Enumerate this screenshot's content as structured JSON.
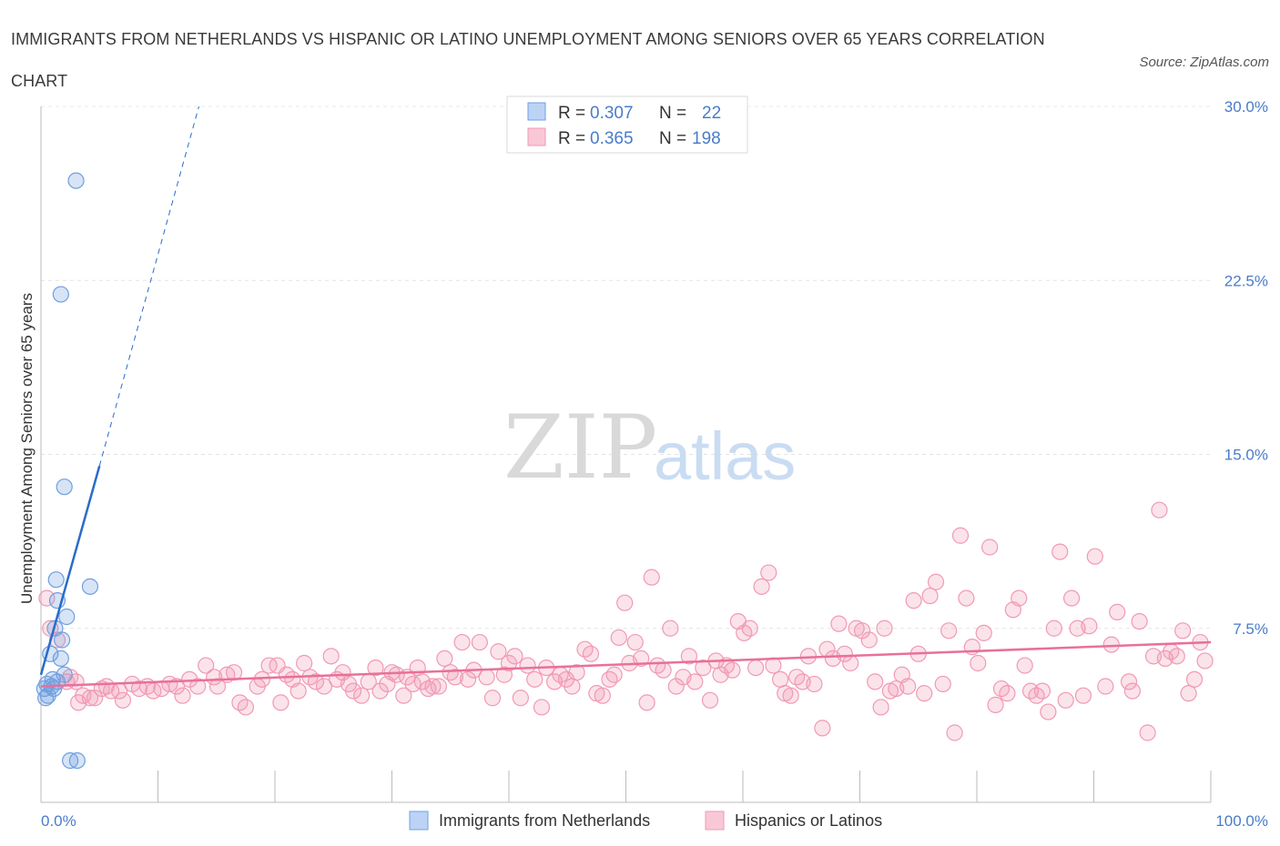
{
  "header": {
    "title": "IMMIGRANTS FROM NETHERLANDS VS HISPANIC OR LATINO UNEMPLOYMENT AMONG SENIORS OVER 65 YEARS CORRELATION CHART",
    "source": "Source: ZipAtlas.com"
  },
  "watermark": {
    "zip": "ZIP",
    "atlas": "atlas"
  },
  "chart_data": {
    "type": "scatter",
    "title": "IMMIGRANTS FROM NETHERLANDS VS HISPANIC OR LATINO UNEMPLOYMENT AMONG SENIORS OVER 65 YEARS CORRELATION CHART",
    "xlabel": "",
    "ylabel": "Unemployment Among Seniors over 65 years",
    "xlim": [
      0,
      100
    ],
    "ylim": [
      0,
      30
    ],
    "x_tick_labels": [
      "0.0%",
      "100.0%"
    ],
    "y_ticks": [
      7.5,
      15.0,
      22.5,
      30.0
    ],
    "y_tick_labels": [
      "7.5%",
      "15.0%",
      "22.5%",
      "30.0%"
    ],
    "grid": true,
    "legend_position": "top-center",
    "colors": {
      "netherlands": "#6f9fe0",
      "hispanic": "#f199b5",
      "netherlands_line": "#2a6cc9",
      "hispanic_line": "#e8709a"
    },
    "legend": [
      {
        "r_label": "R = ",
        "r_value": "0.307",
        "n_label": "N = ",
        "n_value": "22"
      },
      {
        "r_label": "R = ",
        "r_value": "0.365",
        "n_label": "N = ",
        "n_value": "198"
      }
    ],
    "series": [
      {
        "name": "Immigrants from Netherlands",
        "trend": {
          "x0": 0.0,
          "y0": 5.5,
          "x1": 5.0,
          "y1": 14.5,
          "dashed_to_x": 13.5,
          "dashed_to_y": 30.0
        },
        "points": [
          [
            3.0,
            26.8
          ],
          [
            1.7,
            21.9
          ],
          [
            2.0,
            13.6
          ],
          [
            4.2,
            9.3
          ],
          [
            1.3,
            9.6
          ],
          [
            1.4,
            8.7
          ],
          [
            2.2,
            8.0
          ],
          [
            1.2,
            7.5
          ],
          [
            1.8,
            7.0
          ],
          [
            0.8,
            6.4
          ],
          [
            1.7,
            6.2
          ],
          [
            2.0,
            5.5
          ],
          [
            1.0,
            5.3
          ],
          [
            1.4,
            5.2
          ],
          [
            0.5,
            5.1
          ],
          [
            0.9,
            5.0
          ],
          [
            0.3,
            4.9
          ],
          [
            1.1,
            4.9
          ],
          [
            0.6,
            4.6
          ],
          [
            0.4,
            4.5
          ],
          [
            2.5,
            1.8
          ],
          [
            3.1,
            1.8
          ]
        ]
      },
      {
        "name": "Hispanics or Latinos",
        "trend": {
          "x0": 0.0,
          "y0": 5.0,
          "x1": 100.0,
          "y1": 6.9
        },
        "points": [
          [
            0.5,
            8.8
          ],
          [
            0.8,
            7.5
          ],
          [
            1.4,
            7.0
          ],
          [
            2.2,
            5.2
          ],
          [
            2.5,
            5.4
          ],
          [
            3.0,
            5.2
          ],
          [
            3.2,
            4.3
          ],
          [
            3.6,
            4.6
          ],
          [
            4.2,
            4.5
          ],
          [
            4.6,
            4.5
          ],
          [
            5.2,
            4.9
          ],
          [
            5.6,
            5.0
          ],
          [
            6.0,
            4.8
          ],
          [
            6.7,
            4.8
          ],
          [
            7.0,
            4.4
          ],
          [
            7.8,
            5.1
          ],
          [
            8.4,
            4.9
          ],
          [
            9.1,
            5.0
          ],
          [
            9.6,
            4.8
          ],
          [
            10.3,
            4.9
          ],
          [
            11.0,
            5.1
          ],
          [
            11.6,
            5.0
          ],
          [
            12.1,
            4.6
          ],
          [
            12.7,
            5.3
          ],
          [
            13.4,
            5.0
          ],
          [
            14.1,
            5.9
          ],
          [
            14.8,
            5.4
          ],
          [
            15.1,
            5.0
          ],
          [
            15.9,
            5.5
          ],
          [
            16.5,
            5.6
          ],
          [
            17.0,
            4.3
          ],
          [
            17.5,
            4.1
          ],
          [
            18.5,
            5.0
          ],
          [
            18.9,
            5.3
          ],
          [
            19.5,
            5.9
          ],
          [
            20.2,
            5.9
          ],
          [
            20.5,
            4.3
          ],
          [
            21.0,
            5.5
          ],
          [
            21.5,
            5.3
          ],
          [
            22.0,
            4.8
          ],
          [
            22.5,
            6.0
          ],
          [
            23.0,
            5.4
          ],
          [
            23.5,
            5.2
          ],
          [
            24.2,
            5.0
          ],
          [
            24.8,
            6.3
          ],
          [
            25.3,
            5.3
          ],
          [
            25.8,
            5.6
          ],
          [
            26.3,
            5.1
          ],
          [
            26.7,
            4.8
          ],
          [
            27.4,
            4.6
          ],
          [
            28.0,
            5.2
          ],
          [
            28.6,
            5.8
          ],
          [
            29.0,
            4.8
          ],
          [
            29.6,
            5.1
          ],
          [
            30.0,
            5.6
          ],
          [
            30.4,
            5.5
          ],
          [
            31.0,
            4.6
          ],
          [
            31.3,
            5.4
          ],
          [
            31.8,
            5.1
          ],
          [
            32.2,
            5.8
          ],
          [
            32.6,
            5.2
          ],
          [
            33.1,
            4.9
          ],
          [
            33.5,
            5.0
          ],
          [
            34.0,
            5.0
          ],
          [
            34.5,
            6.2
          ],
          [
            35.0,
            5.6
          ],
          [
            35.4,
            5.4
          ],
          [
            36.0,
            6.9
          ],
          [
            36.5,
            5.3
          ],
          [
            37.0,
            5.7
          ],
          [
            37.5,
            6.9
          ],
          [
            38.1,
            5.4
          ],
          [
            38.6,
            4.5
          ],
          [
            39.1,
            6.5
          ],
          [
            39.6,
            5.5
          ],
          [
            40.0,
            6.0
          ],
          [
            40.5,
            6.3
          ],
          [
            41.0,
            4.5
          ],
          [
            41.6,
            5.9
          ],
          [
            42.2,
            5.3
          ],
          [
            42.8,
            4.1
          ],
          [
            43.2,
            5.8
          ],
          [
            43.9,
            5.2
          ],
          [
            44.4,
            5.5
          ],
          [
            44.9,
            5.3
          ],
          [
            45.4,
            5.0
          ],
          [
            45.8,
            5.6
          ],
          [
            46.5,
            6.6
          ],
          [
            47.0,
            6.4
          ],
          [
            47.5,
            4.7
          ],
          [
            48.0,
            4.6
          ],
          [
            48.6,
            5.3
          ],
          [
            49.0,
            5.5
          ],
          [
            49.4,
            7.1
          ],
          [
            49.9,
            8.6
          ],
          [
            50.3,
            6.0
          ],
          [
            50.8,
            6.9
          ],
          [
            51.3,
            6.2
          ],
          [
            51.8,
            4.3
          ],
          [
            52.2,
            9.7
          ],
          [
            52.7,
            5.9
          ],
          [
            53.2,
            5.7
          ],
          [
            53.8,
            7.5
          ],
          [
            54.3,
            5.0
          ],
          [
            54.9,
            5.4
          ],
          [
            55.4,
            6.3
          ],
          [
            55.9,
            5.2
          ],
          [
            56.6,
            5.8
          ],
          [
            57.2,
            4.4
          ],
          [
            57.7,
            6.1
          ],
          [
            58.1,
            5.5
          ],
          [
            58.6,
            5.9
          ],
          [
            59.1,
            5.7
          ],
          [
            59.6,
            7.8
          ],
          [
            60.1,
            7.3
          ],
          [
            60.6,
            7.5
          ],
          [
            61.1,
            5.8
          ],
          [
            61.6,
            9.3
          ],
          [
            62.2,
            9.9
          ],
          [
            62.6,
            5.9
          ],
          [
            63.2,
            5.3
          ],
          [
            63.6,
            4.7
          ],
          [
            64.1,
            4.6
          ],
          [
            64.6,
            5.4
          ],
          [
            65.1,
            5.2
          ],
          [
            65.6,
            6.3
          ],
          [
            66.1,
            5.1
          ],
          [
            66.8,
            3.2
          ],
          [
            67.2,
            6.6
          ],
          [
            67.7,
            6.2
          ],
          [
            68.2,
            7.7
          ],
          [
            68.7,
            6.4
          ],
          [
            69.2,
            6.0
          ],
          [
            69.7,
            7.5
          ],
          [
            70.2,
            7.4
          ],
          [
            70.8,
            7.0
          ],
          [
            71.3,
            5.2
          ],
          [
            71.8,
            4.1
          ],
          [
            72.1,
            7.5
          ],
          [
            72.6,
            4.8
          ],
          [
            73.1,
            4.9
          ],
          [
            73.6,
            5.5
          ],
          [
            74.1,
            5.0
          ],
          [
            74.6,
            8.7
          ],
          [
            75.0,
            6.4
          ],
          [
            75.5,
            4.7
          ],
          [
            76.0,
            8.9
          ],
          [
            76.5,
            9.5
          ],
          [
            77.1,
            5.1
          ],
          [
            77.6,
            7.4
          ],
          [
            78.1,
            3.0
          ],
          [
            78.6,
            11.5
          ],
          [
            79.1,
            8.8
          ],
          [
            79.6,
            6.7
          ],
          [
            80.1,
            6.0
          ],
          [
            80.6,
            7.3
          ],
          [
            81.1,
            11.0
          ],
          [
            81.6,
            4.2
          ],
          [
            82.1,
            4.9
          ],
          [
            82.6,
            4.7
          ],
          [
            83.1,
            8.3
          ],
          [
            83.6,
            8.8
          ],
          [
            84.1,
            5.9
          ],
          [
            84.6,
            4.8
          ],
          [
            85.1,
            4.6
          ],
          [
            85.6,
            4.8
          ],
          [
            86.1,
            3.9
          ],
          [
            86.6,
            7.5
          ],
          [
            87.1,
            10.8
          ],
          [
            87.6,
            4.4
          ],
          [
            88.1,
            8.8
          ],
          [
            88.6,
            7.5
          ],
          [
            89.1,
            4.6
          ],
          [
            89.6,
            7.6
          ],
          [
            90.1,
            10.6
          ],
          [
            91.0,
            5.0
          ],
          [
            91.5,
            6.8
          ],
          [
            92.0,
            8.2
          ],
          [
            93.0,
            5.2
          ],
          [
            93.3,
            4.8
          ],
          [
            93.9,
            7.8
          ],
          [
            94.6,
            3.0
          ],
          [
            95.1,
            6.3
          ],
          [
            95.6,
            12.6
          ],
          [
            96.1,
            6.2
          ],
          [
            96.6,
            6.5
          ],
          [
            97.1,
            6.3
          ],
          [
            97.6,
            7.4
          ],
          [
            98.1,
            4.7
          ],
          [
            98.6,
            5.3
          ],
          [
            99.1,
            6.9
          ],
          [
            99.5,
            6.1
          ]
        ]
      }
    ]
  }
}
